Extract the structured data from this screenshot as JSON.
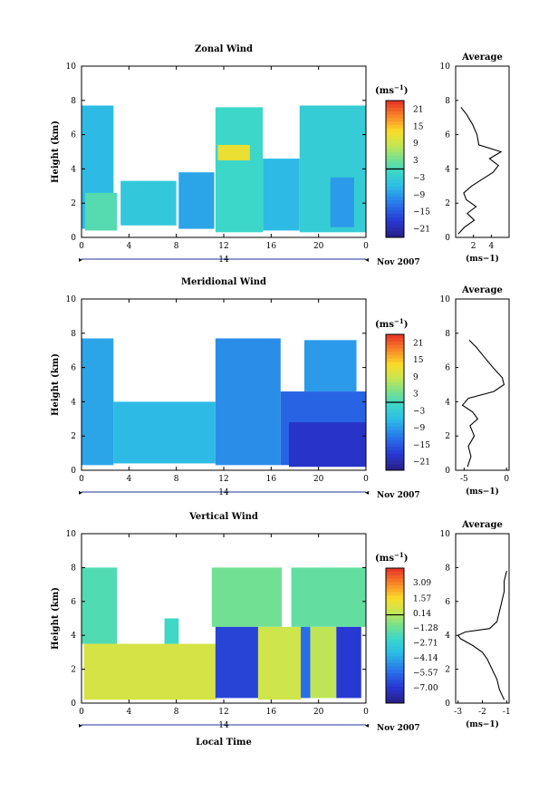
{
  "chart_data": [
    {
      "type": "heatmap",
      "title": "Zonal Wind",
      "ylabel": "Height (km)",
      "ylim": [
        0,
        10
      ],
      "yticks": [
        "0",
        "2",
        "4",
        "6",
        "8",
        "10"
      ],
      "xlim": [
        0,
        24
      ],
      "xticks": [
        "0",
        "4",
        "8",
        "12",
        "16",
        "20",
        "0"
      ],
      "date_label": "14",
      "date_suffix": "Nov 2007",
      "colorbar": {
        "unit_base": "(ms",
        "unit_exp": "−1",
        "unit_close": ")",
        "range": [
          -24,
          24
        ],
        "ticks": [
          "21",
          "15",
          "9",
          "3",
          "−3",
          "−9",
          "−15",
          "−21"
        ],
        "tick_values": [
          21,
          15,
          9,
          3,
          -3,
          -9,
          -15,
          -21
        ]
      },
      "data_blocks": [
        {
          "x": [
            0,
            2.7
          ],
          "y": [
            0.5,
            7.7
          ],
          "v": -6
        },
        {
          "x": [
            0.3,
            3.0
          ],
          "y": [
            0.4,
            2.6
          ],
          "v": 1
        },
        {
          "x": [
            3.3,
            8.0
          ],
          "y": [
            0.7,
            3.3
          ],
          "v": -4
        },
        {
          "x": [
            8.2,
            11.2
          ],
          "y": [
            0.5,
            3.8
          ],
          "v": -8
        },
        {
          "x": [
            11.3,
            15.3
          ],
          "y": [
            0.3,
            7.6
          ],
          "v": -1
        },
        {
          "x": [
            11.5,
            14.2
          ],
          "y": [
            4.5,
            5.4
          ],
          "v": 12
        },
        {
          "x": [
            15.3,
            18.4
          ],
          "y": [
            0.4,
            4.6
          ],
          "v": -6
        },
        {
          "x": [
            18.4,
            24
          ],
          "y": [
            0.3,
            7.7
          ],
          "v": -3
        },
        {
          "x": [
            21.0,
            23.0
          ],
          "y": [
            0.6,
            3.5
          ],
          "v": -9
        }
      ],
      "average": {
        "title": "Average",
        "xticks": [
          "2",
          "4"
        ],
        "xlim": [
          0,
          6
        ],
        "xunit": "(ms−1)",
        "heights": [
          0.2,
          0.6,
          1.0,
          1.4,
          1.8,
          2.2,
          2.6,
          3.0,
          3.4,
          3.8,
          4.2,
          4.6,
          5.0,
          5.4,
          6.0,
          6.6,
          7.2,
          7.6
        ],
        "values": [
          0.3,
          1.0,
          2.1,
          1.3,
          2.3,
          1.2,
          0.9,
          1.8,
          3.0,
          4.2,
          4.8,
          3.8,
          5.1,
          2.6,
          2.4,
          1.9,
          1.2,
          0.6
        ]
      }
    },
    {
      "type": "heatmap",
      "title": "Meridional Wind",
      "ylabel": "Height (km)",
      "ylim": [
        0,
        10
      ],
      "yticks": [
        "0",
        "2",
        "4",
        "6",
        "8",
        "10"
      ],
      "xlim": [
        0,
        24
      ],
      "xticks": [
        "0",
        "4",
        "8",
        "12",
        "16",
        "20",
        "0"
      ],
      "date_label": "14",
      "date_suffix": "Nov 2007",
      "colorbar": {
        "unit_base": "(ms",
        "unit_exp": "−1",
        "unit_close": ")",
        "range": [
          -24,
          24
        ],
        "ticks": [
          "21",
          "15",
          "9",
          "3",
          "−3",
          "−9",
          "−15",
          "−21"
        ],
        "tick_values": [
          21,
          15,
          9,
          3,
          -3,
          -9,
          -15,
          -21
        ]
      },
      "data_blocks": [
        {
          "x": [
            0,
            2.7
          ],
          "y": [
            0.3,
            7.7
          ],
          "v": -8
        },
        {
          "x": [
            2.7,
            11.3
          ],
          "y": [
            0.4,
            4.0
          ],
          "v": -6
        },
        {
          "x": [
            11.3,
            16.8
          ],
          "y": [
            0.3,
            7.7
          ],
          "v": -10
        },
        {
          "x": [
            16.8,
            24
          ],
          "y": [
            0.3,
            4.6
          ],
          "v": -14
        },
        {
          "x": [
            17.5,
            24
          ],
          "y": [
            0.2,
            2.8
          ],
          "v": -19
        },
        {
          "x": [
            18.8,
            23.2
          ],
          "y": [
            4.6,
            7.6
          ],
          "v": -9
        }
      ],
      "average": {
        "title": "Average",
        "xticks": [
          "-5",
          "0"
        ],
        "xlim": [
          -6,
          0.3
        ],
        "xunit": "(ms−1)",
        "heights": [
          0.2,
          0.8,
          1.4,
          2.0,
          2.6,
          3.0,
          3.4,
          3.8,
          4.2,
          4.6,
          5.0,
          5.4,
          6.0,
          6.6,
          7.2,
          7.6
        ],
        "values": [
          -4.6,
          -4.2,
          -4.5,
          -3.8,
          -4.3,
          -3.4,
          -4.0,
          -5.2,
          -4.5,
          -1.5,
          -0.3,
          -0.5,
          -1.6,
          -2.6,
          -3.6,
          -4.4
        ]
      }
    },
    {
      "type": "heatmap",
      "title": "Vertical Wind",
      "ylabel": "Height (km)",
      "xlabel": "Local Time",
      "ylim": [
        0,
        10
      ],
      "yticks": [
        "0",
        "2",
        "4",
        "6",
        "8",
        "10"
      ],
      "xlim": [
        0,
        24
      ],
      "xticks": [
        "0",
        "4",
        "8",
        "12",
        "16",
        "20",
        "0"
      ],
      "date_label": "14",
      "date_suffix": "Nov 2007",
      "colorbar": {
        "unit_base": "(ms",
        "unit_exp": "−1",
        "unit_close": ")",
        "range": [
          -8.5,
          4.5
        ],
        "ticks": [
          "3.09",
          "1.57",
          "0.14",
          "−1.28",
          "−2.71",
          "−4.14",
          "−5.57",
          "−7.00"
        ],
        "tick_values": [
          3.09,
          1.57,
          0.14,
          -1.28,
          -2.71,
          -4.14,
          -5.57,
          -7.0
        ]
      },
      "data_blocks": [
        {
          "x": [
            0,
            3.0
          ],
          "y": [
            3.5,
            8.0
          ],
          "v": -1.8
        },
        {
          "x": [
            0.2,
            11.4
          ],
          "y": [
            0.2,
            3.5
          ],
          "v": 0.7
        },
        {
          "x": [
            7.0,
            8.2
          ],
          "y": [
            3.5,
            5.0
          ],
          "v": -2.2
        },
        {
          "x": [
            11.0,
            16.9
          ],
          "y": [
            4.5,
            8.0
          ],
          "v": -1.1
        },
        {
          "x": [
            11.3,
            14.9
          ],
          "y": [
            0.3,
            4.5
          ],
          "v": -6.6
        },
        {
          "x": [
            14.9,
            18.5
          ],
          "y": [
            0.2,
            4.5
          ],
          "v": 0.5
        },
        {
          "x": [
            17.7,
            24
          ],
          "y": [
            4.5,
            8.0
          ],
          "v": -1.4
        },
        {
          "x": [
            18.5,
            19.3
          ],
          "y": [
            0.3,
            4.5
          ],
          "v": -5.5
        },
        {
          "x": [
            19.3,
            21.5
          ],
          "y": [
            0.3,
            4.5
          ],
          "v": 0.2
        },
        {
          "x": [
            21.5,
            23.6
          ],
          "y": [
            0.3,
            4.5
          ],
          "v": -6.9
        }
      ],
      "average": {
        "title": "Average",
        "xticks": [
          "-3",
          "-2",
          "-1"
        ],
        "xlim": [
          -3.1,
          -0.9
        ],
        "xunit": "(ms−1)",
        "heights": [
          0.2,
          0.8,
          1.4,
          2.0,
          2.6,
          3.0,
          3.4,
          3.8,
          4.0,
          4.2,
          4.4,
          4.8,
          5.4,
          6.0,
          6.6,
          7.2,
          7.8
        ],
        "values": [
          -1.1,
          -1.3,
          -1.4,
          -1.6,
          -1.8,
          -2.0,
          -2.4,
          -2.9,
          -3.0,
          -2.7,
          -1.7,
          -1.4,
          -1.3,
          -1.2,
          -1.1,
          -1.1,
          -1.0
        ]
      }
    }
  ]
}
